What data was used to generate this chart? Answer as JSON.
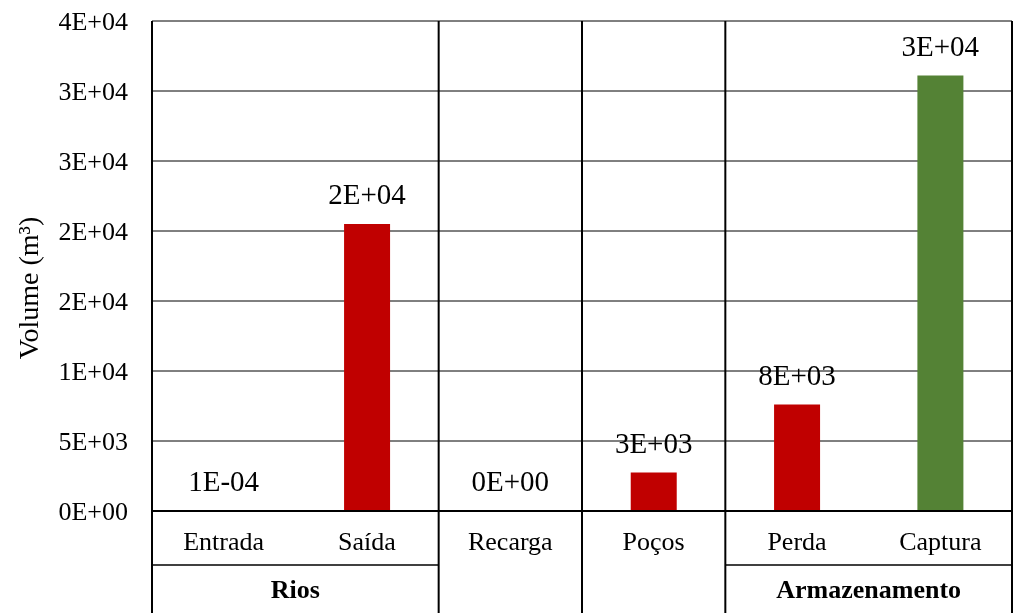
{
  "chart_data": {
    "type": "bar",
    "ylabel": "Volume (m³)",
    "categories": [
      "Entrada",
      "Saída",
      "Recarga",
      "Poços",
      "Perda",
      "Captura"
    ],
    "values": [
      0.0001,
      20500,
      0,
      2750,
      7600,
      31100
    ],
    "colors": [
      "#c00000",
      "#c00000",
      "#c00000",
      "#c00000",
      "#c00000",
      "#548235"
    ],
    "value_labels": [
      "1E-04",
      "2E+04",
      "0E+00",
      "3E+03",
      "8E+03",
      "3E+04"
    ],
    "ylim": [
      0,
      35000
    ],
    "yticks": [
      {
        "value": 0,
        "label": "0E+00"
      },
      {
        "value": 5000,
        "label": "5E+03"
      },
      {
        "value": 10000,
        "label": "1E+04"
      },
      {
        "value": 15000,
        "label": "2E+04"
      },
      {
        "value": 20000,
        "label": "2E+04"
      },
      {
        "value": 25000,
        "label": "3E+04"
      },
      {
        "value": 30000,
        "label": "3E+04"
      },
      {
        "value": 35000,
        "label": "4E+04"
      }
    ],
    "grid": "y",
    "annotations": [
      "Rios",
      "Armazenamento"
    ]
  }
}
